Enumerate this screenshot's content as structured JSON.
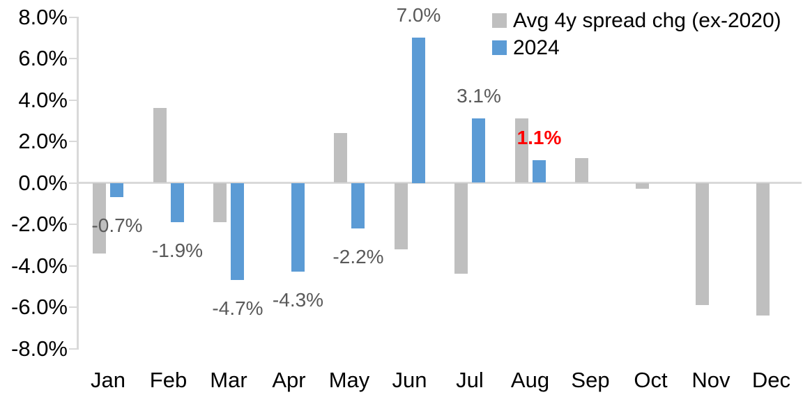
{
  "chart_data": {
    "type": "bar",
    "title": "",
    "categories": [
      "Jan",
      "Feb",
      "Mar",
      "Apr",
      "May",
      "Jun",
      "Jul",
      "Aug",
      "Sep",
      "Oct",
      "Nov",
      "Dec"
    ],
    "series": [
      {
        "name": "Avg 4y spread chg (ex-2020)",
        "color": "#BFBFBF",
        "values": [
          -3.4,
          3.6,
          -1.9,
          0.0,
          2.4,
          -3.2,
          -4.4,
          3.1,
          1.2,
          -0.3,
          -5.9,
          -6.4
        ]
      },
      {
        "name": "2024",
        "color": "#5B9BD5",
        "values": [
          -0.7,
          -1.9,
          -4.7,
          -4.3,
          -2.2,
          7.0,
          3.1,
          1.1,
          null,
          null,
          null,
          null
        ],
        "data_labels": [
          "-0.7%",
          "-1.9%",
          "-4.7%",
          "-4.3%",
          "-2.2%",
          "7.0%",
          "3.1%",
          "1.1%",
          null,
          null,
          null,
          null
        ]
      }
    ],
    "highlight_label": {
      "month": "Aug",
      "text": "1.1%",
      "color": "#FF0000",
      "bold": true
    },
    "ylim": [
      -8,
      8
    ],
    "ytick_step": 2,
    "ytick_labels": [
      "8.0%",
      "6.0%",
      "4.0%",
      "2.0%",
      "0.0%",
      "-2.0%",
      "-4.0%",
      "-6.0%",
      "-8.0%"
    ],
    "grid": false,
    "legend_position": "top-right",
    "axis_line_color": "#D9D9D9",
    "tick_label_color": "#000000",
    "data_label_color": "#595959",
    "background": "#FFFFFF"
  }
}
